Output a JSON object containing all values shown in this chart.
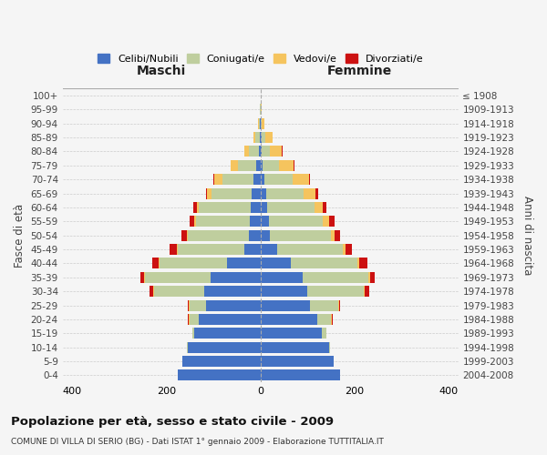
{
  "age_groups": [
    "0-4",
    "5-9",
    "10-14",
    "15-19",
    "20-24",
    "25-29",
    "30-34",
    "35-39",
    "40-44",
    "45-49",
    "50-54",
    "55-59",
    "60-64",
    "65-69",
    "70-74",
    "75-79",
    "80-84",
    "85-89",
    "90-94",
    "95-99",
    "100+"
  ],
  "birth_years": [
    "2004-2008",
    "1999-2003",
    "1994-1998",
    "1989-1993",
    "1984-1988",
    "1979-1983",
    "1974-1978",
    "1969-1973",
    "1964-1968",
    "1959-1963",
    "1954-1958",
    "1949-1953",
    "1944-1948",
    "1939-1943",
    "1934-1938",
    "1929-1933",
    "1924-1928",
    "1919-1923",
    "1914-1918",
    "1909-1913",
    "≤ 1908"
  ],
  "maschi_celibi": [
    175,
    165,
    155,
    140,
    130,
    115,
    120,
    105,
    70,
    35,
    25,
    22,
    20,
    18,
    15,
    8,
    4,
    2,
    1,
    0,
    0
  ],
  "maschi_coniugati": [
    0,
    0,
    2,
    5,
    20,
    35,
    105,
    140,
    145,
    140,
    130,
    115,
    110,
    85,
    65,
    40,
    20,
    8,
    3,
    1,
    0
  ],
  "maschi_vedovi": [
    0,
    0,
    0,
    0,
    2,
    2,
    2,
    2,
    2,
    2,
    2,
    3,
    5,
    10,
    18,
    15,
    10,
    5,
    2,
    0,
    0
  ],
  "maschi_divorziati": [
    0,
    0,
    0,
    0,
    2,
    2,
    8,
    8,
    12,
    15,
    10,
    10,
    8,
    3,
    2,
    0,
    0,
    0,
    0,
    0,
    0
  ],
  "femmine_celibi": [
    170,
    155,
    145,
    130,
    120,
    105,
    100,
    90,
    65,
    35,
    20,
    18,
    15,
    12,
    8,
    5,
    3,
    2,
    1,
    0,
    0
  ],
  "femmine_coniugati": [
    0,
    0,
    2,
    10,
    30,
    60,
    120,
    140,
    140,
    140,
    130,
    115,
    100,
    80,
    60,
    35,
    18,
    8,
    2,
    1,
    0
  ],
  "femmine_vedovi": [
    0,
    0,
    0,
    0,
    2,
    2,
    2,
    3,
    5,
    5,
    8,
    12,
    18,
    25,
    35,
    30,
    25,
    15,
    5,
    2,
    0
  ],
  "femmine_divorziati": [
    0,
    0,
    0,
    0,
    2,
    3,
    10,
    10,
    18,
    15,
    12,
    12,
    8,
    5,
    3,
    2,
    1,
    0,
    0,
    0,
    0
  ],
  "colors": {
    "celibi": "#4472C4",
    "coniugati": "#BFCE9E",
    "vedovi": "#F5C45E",
    "divorziati": "#CC1111"
  },
  "title": "Popolazione per età, sesso e stato civile - 2009",
  "subtitle": "COMUNE DI VILLA DI SERIO (BG) - Dati ISTAT 1° gennaio 2009 - Elaborazione TUTTITALIA.IT",
  "ylabel_left": "Fasce di età",
  "ylabel_right": "Anni di nascita",
  "xlabel_left": "Maschi",
  "xlabel_right": "Femmine",
  "xlim": 420,
  "background_color": "#f5f5f5",
  "grid_color": "#cccccc"
}
